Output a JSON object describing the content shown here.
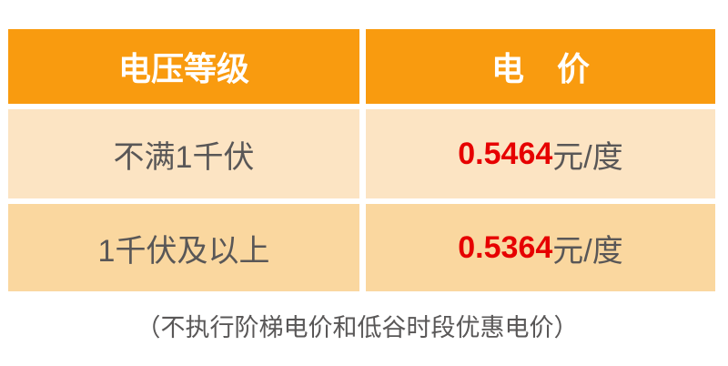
{
  "colors": {
    "header_bg": "#F99B0F",
    "header_text": "#FFFFFF",
    "row1_bg": "#FCE4C3",
    "row2_bg": "#FAD79F",
    "price_red": "#E60000",
    "text_gray": "#595757"
  },
  "table": {
    "headers": [
      "电压等级",
      "电　价"
    ],
    "rows": [
      {
        "voltage_level": "不满1千伏",
        "price": "0.5464",
        "unit": "元/度"
      },
      {
        "voltage_level": "1千伏及以上",
        "price": "0.5364",
        "unit": "元/度"
      }
    ]
  },
  "footnote": "（不执行阶梯电价和低谷时段优惠电价）",
  "chart_data": {
    "type": "table",
    "columns": [
      "电压等级",
      "电价"
    ],
    "rows": [
      [
        "不满1千伏",
        "0.5464元/度"
      ],
      [
        "1千伏及以上",
        "0.5364元/度"
      ]
    ],
    "values": [
      0.5464,
      0.5364
    ],
    "unit": "元/度",
    "note": "（不执行阶梯电价和低谷时段优惠电价）"
  }
}
